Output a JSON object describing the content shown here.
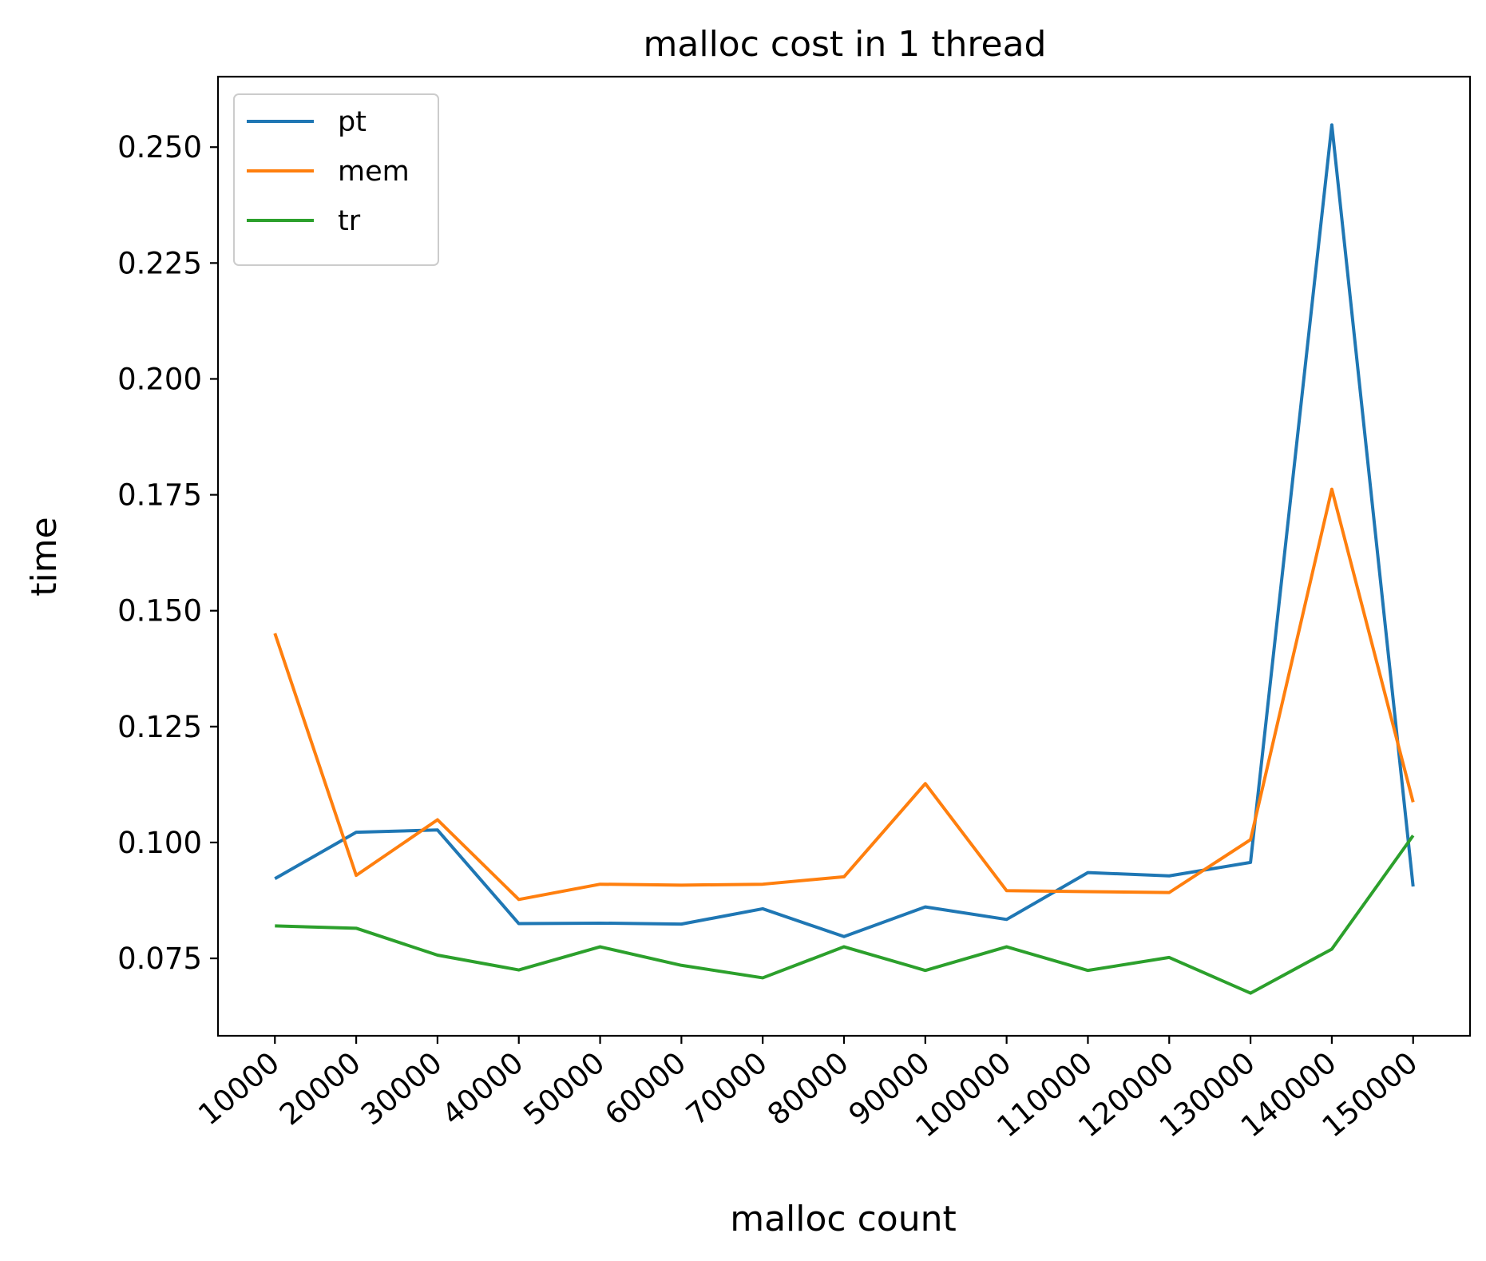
{
  "chart_data": {
    "type": "line",
    "title": "malloc cost in 1 thread",
    "xlabel": "malloc count",
    "ylabel": "time",
    "x": [
      10000,
      20000,
      30000,
      40000,
      50000,
      60000,
      70000,
      80000,
      90000,
      100000,
      110000,
      120000,
      130000,
      140000,
      150000
    ],
    "x_tick_labels": [
      "10000",
      "20000",
      "30000",
      "40000",
      "50000",
      "60000",
      "70000",
      "80000",
      "90000",
      "100000",
      "110000",
      "120000",
      "130000",
      "140000",
      "150000"
    ],
    "y_ticks": [
      0.075,
      0.1,
      0.125,
      0.15,
      0.175,
      0.2,
      0.225,
      0.25
    ],
    "y_tick_labels": [
      "0.075",
      "0.100",
      "0.125",
      "0.150",
      "0.175",
      "0.200",
      "0.225",
      "0.250"
    ],
    "ylim": [
      0.0583,
      0.2652
    ],
    "xlim": [
      3000,
      157000
    ],
    "grid": false,
    "legend_position": "top-left",
    "series": [
      {
        "name": "pt",
        "color": "#1f77b4",
        "values": [
          0.0922,
          0.1022,
          0.1027,
          0.0825,
          0.0826,
          0.0824,
          0.0857,
          0.0797,
          0.0861,
          0.0834,
          0.0935,
          0.0928,
          0.0957,
          0.2548,
          0.0905
        ]
      },
      {
        "name": "mem",
        "color": "#ff7f0e",
        "values": [
          0.1451,
          0.0929,
          0.1049,
          0.0877,
          0.091,
          0.0908,
          0.091,
          0.0926,
          0.1127,
          0.0896,
          0.0894,
          0.0892,
          0.1006,
          0.1762,
          0.1087
        ]
      },
      {
        "name": "tr",
        "color": "#2ca02c",
        "values": [
          0.082,
          0.0815,
          0.0757,
          0.0725,
          0.0775,
          0.0735,
          0.0708,
          0.0775,
          0.0724,
          0.0775,
          0.0724,
          0.0752,
          0.0675,
          0.077,
          0.1015
        ]
      }
    ]
  }
}
